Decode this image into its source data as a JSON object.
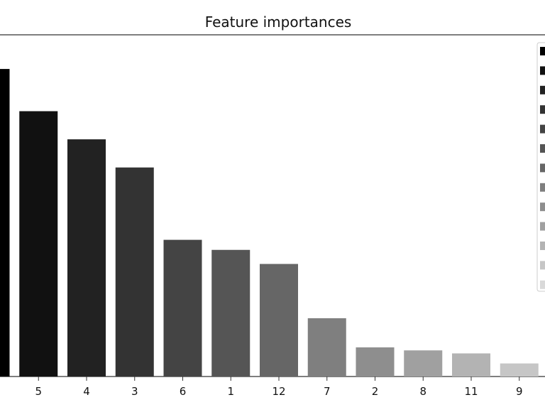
{
  "chart_data": {
    "type": "bar",
    "title": "Feature importances",
    "xlabel": "",
    "ylabel": "",
    "categories": [
      "",
      "5",
      "4",
      "3",
      "6",
      "1",
      "12",
      "7",
      "2",
      "8",
      "11",
      "9"
    ],
    "values": [
      0.153,
      0.132,
      0.118,
      0.104,
      0.068,
      0.063,
      0.056,
      0.029,
      0.0145,
      0.013,
      0.0115,
      0.0065
    ],
    "colors": [
      "#000000",
      "#111111",
      "#222222",
      "#333333",
      "#444444",
      "#555555",
      "#666666",
      "#7f7f7f",
      "#8e8e8e",
      "#a0a0a0",
      "#b3b3b3",
      "#c6c6c6"
    ],
    "ylim": [
      0,
      0.17
    ],
    "grid": false,
    "legend": {
      "placement": "right (partially cropped)",
      "colors": [
        "#000000",
        "#111111",
        "#222222",
        "#333333",
        "#444444",
        "#555555",
        "#666666",
        "#7f7f7f",
        "#8e8e8e",
        "#a0a0a0",
        "#b3b3b3",
        "#c6c6c6",
        "#d9d9d9"
      ]
    }
  }
}
